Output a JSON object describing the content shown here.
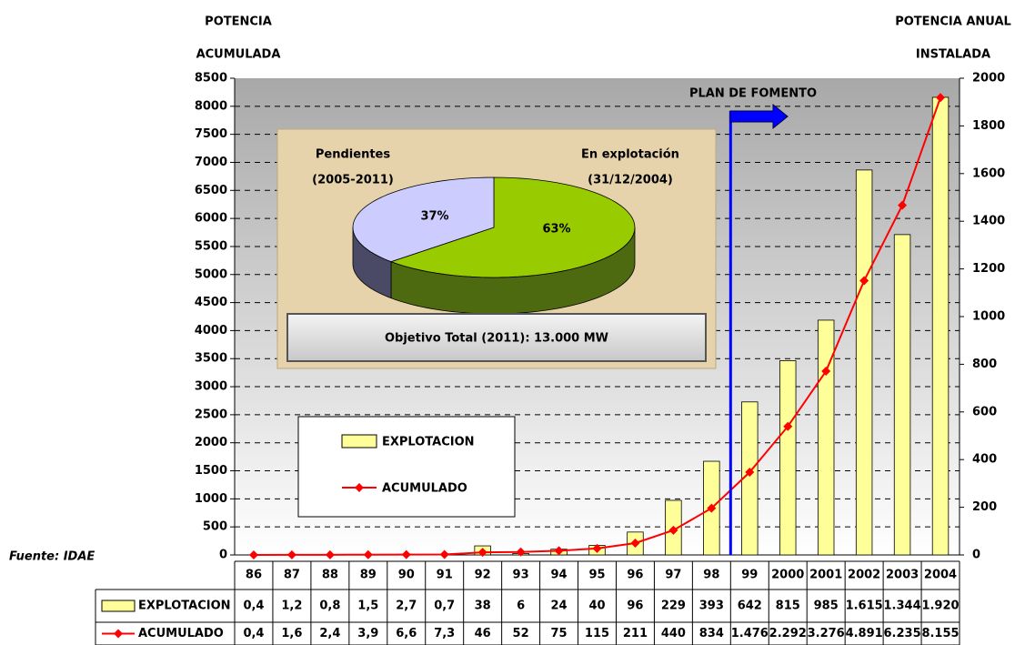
{
  "chart_data": {
    "type": "bar_line",
    "y_axis_label": [
      "POTENCIA",
      "ACUMULADA"
    ],
    "y2_axis_label": [
      "POTENCIA ANUAL",
      "INSTALADA"
    ],
    "categories": [
      "86",
      "87",
      "88",
      "89",
      "90",
      "91",
      "92",
      "93",
      "94",
      "95",
      "96",
      "97",
      "98",
      "99",
      "2000",
      "2001",
      "2002",
      "2003",
      "2004"
    ],
    "series": [
      {
        "name": "EXPLOTACION",
        "type": "bar",
        "axis": "y2",
        "color": "#ffff99",
        "values": [
          0.4,
          1.2,
          0.8,
          1.5,
          2.7,
          0.7,
          38,
          6,
          24,
          40,
          96,
          229,
          393,
          642,
          815,
          985,
          1615,
          1344,
          1920
        ],
        "value_labels": [
          "0,4",
          "1,2",
          "0,8",
          "1,5",
          "2,7",
          "0,7",
          "38",
          "6",
          "24",
          "40",
          "96",
          "229",
          "393",
          "642",
          "815",
          "985",
          "1.615",
          "1.344",
          "1.920"
        ]
      },
      {
        "name": "ACUMULADO",
        "type": "line",
        "axis": "y",
        "color": "#ff0000",
        "values": [
          0.4,
          1.6,
          2.4,
          3.9,
          6.6,
          7.3,
          46,
          52,
          75,
          115,
          211,
          440,
          834,
          1476,
          2292,
          3276,
          4891,
          6235,
          8155
        ],
        "value_labels": [
          "0,4",
          "1,6",
          "2,4",
          "3,9",
          "6,6",
          "7,3",
          "46",
          "52",
          "75",
          "115",
          "211",
          "440",
          "834",
          "1.476",
          "2.292",
          "3.276",
          "4.891",
          "6.235",
          "8.155"
        ]
      }
    ],
    "ylim": [
      0,
      8500
    ],
    "yticks": [
      0,
      500,
      1000,
      1500,
      2000,
      2500,
      3000,
      3500,
      4000,
      4500,
      5000,
      5500,
      6000,
      6500,
      7000,
      7500,
      8000,
      8500
    ],
    "y2lim": [
      0,
      2000
    ],
    "y2ticks": [
      0,
      200,
      400,
      600,
      800,
      1000,
      1200,
      1400,
      1600,
      1800,
      2000
    ],
    "grid": true,
    "annotation": "PLAN DE FOMENTO",
    "source": "Fuente: IDAE",
    "inset": {
      "type": "pie",
      "labels": [
        [
          "En explotación",
          "(31/12/2004)"
        ],
        [
          "Pendientes",
          "(2005-2011)"
        ]
      ],
      "values": [
        63,
        37
      ],
      "value_labels": [
        "63%",
        "37%"
      ],
      "colors": [
        "#99cc00",
        "#ccccff"
      ],
      "note": "Objetivo Total (2011): 13.000 MW"
    }
  }
}
